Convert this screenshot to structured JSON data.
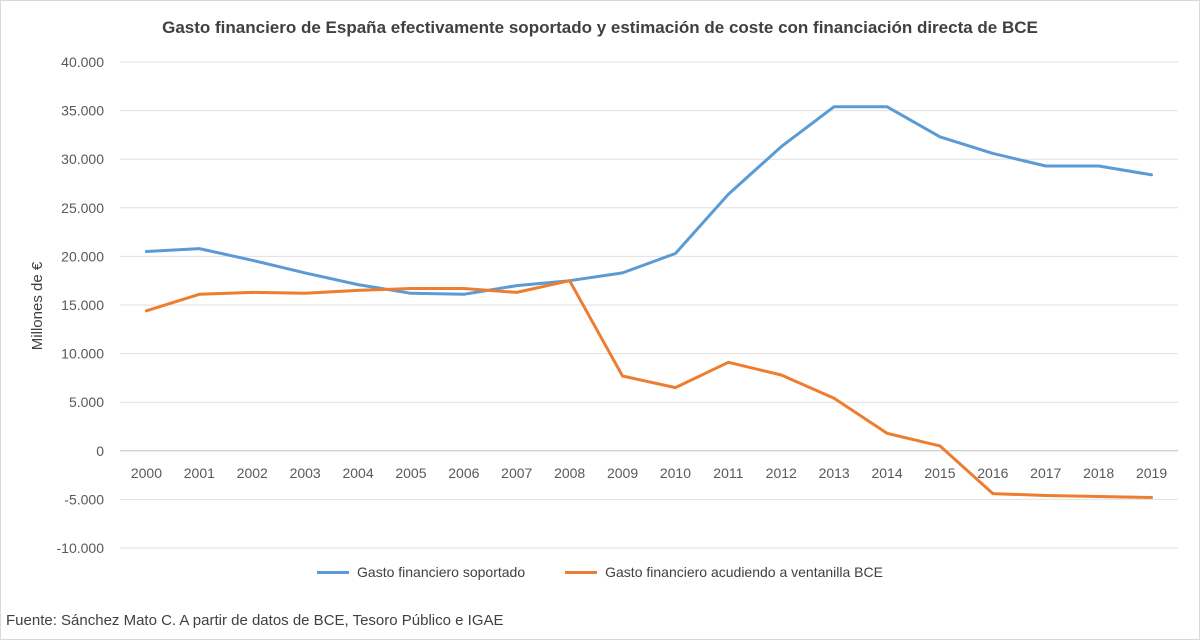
{
  "chart_data": {
    "type": "line",
    "title": "Gasto financiero de España efectivamente soportado  y estimación de coste con financiación directa de BCE",
    "xlabel": "",
    "ylabel": "Millones de €",
    "categories": [
      "2000",
      "2001",
      "2002",
      "2003",
      "2004",
      "2005",
      "2006",
      "2007",
      "2008",
      "2009",
      "2010",
      "2011",
      "2012",
      "2013",
      "2014",
      "2015",
      "2016",
      "2017",
      "2018",
      "2019"
    ],
    "ylim": [
      -10000,
      40000
    ],
    "yticks": [
      -10000,
      -5000,
      0,
      5000,
      10000,
      15000,
      20000,
      25000,
      30000,
      35000,
      40000
    ],
    "ytick_labels": [
      "-10.000",
      "-5.000",
      "0",
      "5.000",
      "10.000",
      "15.000",
      "20.000",
      "25.000",
      "30.000",
      "35.000",
      "40.000"
    ],
    "grid": true,
    "legend_position": "bottom",
    "series": [
      {
        "name": "Gasto financiero soportado",
        "color": "#5b9bd5",
        "values": [
          20500,
          20800,
          19600,
          18300,
          17100,
          16200,
          16100,
          17000,
          17500,
          18300,
          20300,
          26400,
          31300,
          35400,
          35400,
          32300,
          30600,
          29300,
          29300,
          28400
        ]
      },
      {
        "name": "Gasto financiero acudiendo a ventanilla BCE",
        "color": "#ed7d31",
        "values": [
          14400,
          16100,
          16300,
          16200,
          16500,
          16700,
          16700,
          16300,
          17500,
          7700,
          6500,
          9100,
          7800,
          5400,
          1800,
          500,
          -4400,
          -4600,
          -4700,
          -4800
        ]
      }
    ]
  },
  "source": "Fuente: Sánchez Mato C. A partir de datos de BCE, Tesoro Público e IGAE"
}
